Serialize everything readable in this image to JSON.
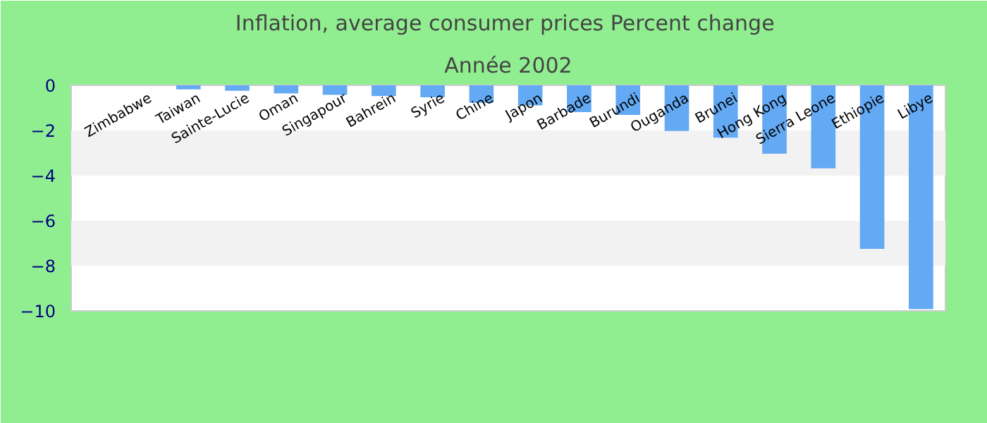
{
  "chart_data": {
    "type": "bar",
    "title": "Inflation, average consumer prices  Percent change",
    "subtitle": "Année 2002",
    "categories": [
      "Zimbabwe",
      "Taiwan",
      "Sainte-Lucie",
      "Oman",
      "Singapour",
      "Bahrein",
      "Syrie",
      "Chine",
      "Japon",
      "Barbade",
      "Burundi",
      "Ouganda",
      "Brunei",
      "Hong Kong",
      "Sierra Leone",
      "Ethiopie",
      "Libye"
    ],
    "values": [
      0,
      -0.18,
      -0.24,
      -0.36,
      -0.42,
      -0.48,
      -0.53,
      -0.77,
      -0.89,
      -1.19,
      -1.31,
      -2.02,
      -2.32,
      -3.03,
      -3.68,
      -7.25,
      -9.92
    ],
    "color": "#63a9f3",
    "ylim": [
      -10,
      0
    ],
    "yticks": [
      -10,
      -8,
      -6,
      -4,
      -2,
      0
    ],
    "grid": false
  }
}
